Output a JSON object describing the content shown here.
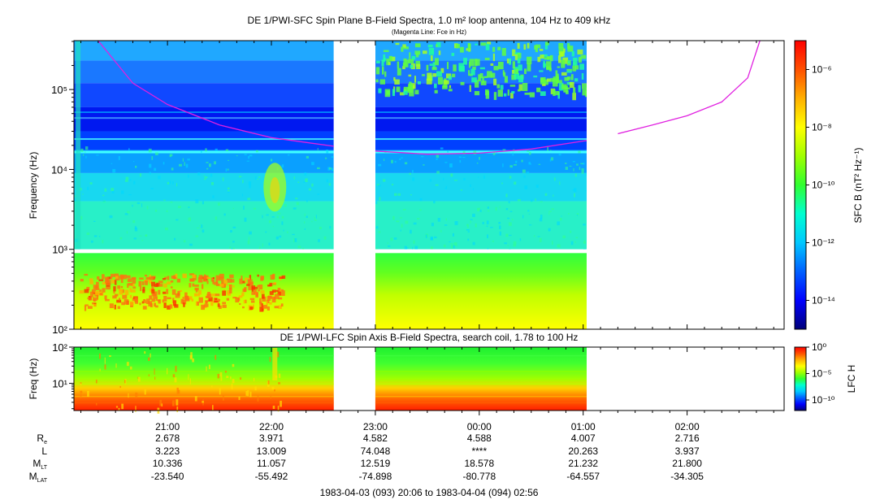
{
  "colors": {
    "fce_line": "#e020e0",
    "colormap": [
      "#00007a",
      "#0000ff",
      "#0060ff",
      "#00c8ff",
      "#00ffd0",
      "#30ff30",
      "#a0ff00",
      "#ffff00",
      "#ffb000",
      "#ff5000",
      "#ff0000"
    ]
  },
  "chart_data": [
    {
      "type": "heatmap",
      "title": "DE 1/PWI-SFC  Spin Plane B-Field Spectra, 1.0 m² loop antenna, 104 Hz to 409 kHz",
      "subtitle": "(Magenta Line: Fce in Hz)",
      "ylabel": "Frequency (Hz)",
      "yscale": "log",
      "ylim": [
        100,
        409000
      ],
      "yticks": [
        {
          "v": 100,
          "label": "10²"
        },
        {
          "v": 1000,
          "label": "10³"
        },
        {
          "v": 10000,
          "label": "10⁴"
        },
        {
          "v": 100000,
          "label": "10⁵"
        }
      ],
      "x_range": [
        "20:06",
        "02:56"
      ],
      "data_gaps": [
        [
          "22:36",
          "23:00"
        ],
        [
          "01:02",
          "02:56"
        ]
      ],
      "colorbar": {
        "label": "SFC B (nT² Hz⁻¹)",
        "scale": "log",
        "range": [
          1e-15,
          1e-05
        ],
        "ticks": [
          {
            "v": 1e-06,
            "label": "10⁻⁶"
          },
          {
            "v": 1e-08,
            "label": "10⁻⁸"
          },
          {
            "v": 1e-10,
            "label": "10⁻¹⁰"
          },
          {
            "v": 1e-12,
            "label": "10⁻¹²"
          },
          {
            "v": 1e-14,
            "label": "10⁻¹⁴"
          }
        ]
      },
      "fce_line": {
        "name": "Fce",
        "segments": [
          [
            [
              "20:20",
              409000
            ],
            [
              "20:40",
              120000
            ],
            [
              "21:00",
              65000
            ],
            [
              "21:30",
              36000
            ],
            [
              "22:00",
              25000
            ],
            [
              "22:36",
              19500
            ]
          ],
          [
            [
              "23:00",
              17000
            ],
            [
              "23:30",
              15500
            ],
            [
              "00:00",
              16000
            ],
            [
              "00:30",
              18000
            ],
            [
              "01:02",
              23000
            ]
          ],
          [
            [
              "01:20",
              28000
            ],
            [
              "01:40",
              36000
            ],
            [
              "02:00",
              47000
            ],
            [
              "02:20",
              70000
            ],
            [
              "02:35",
              140000
            ],
            [
              "02:42",
              409000
            ]
          ]
        ]
      }
    },
    {
      "type": "heatmap",
      "title": "DE 1/PWI-LFC  Spin Axis B-Field Spectra, search coil, 1.78 to 100 Hz",
      "ylabel": "Freq (Hz)",
      "yscale": "log",
      "ylim": [
        1.78,
        100
      ],
      "yticks": [
        {
          "v": 10,
          "label": "10¹"
        },
        {
          "v": 100,
          "label": "10²"
        }
      ],
      "x_range": [
        "20:06",
        "02:56"
      ],
      "data_gaps": [
        [
          "22:36",
          "23:00"
        ],
        [
          "01:02",
          "02:56"
        ]
      ],
      "colorbar": {
        "label": "LFC H",
        "scale": "log",
        "range": [
          1e-12,
          1
        ],
        "ticks": [
          {
            "v": 1,
            "label": "10⁰"
          },
          {
            "v": 1e-05,
            "label": "10⁻⁵"
          },
          {
            "v": 1e-10,
            "label": "10⁻¹⁰"
          }
        ]
      }
    }
  ],
  "time_axis": {
    "ticks": [
      "21:00",
      "22:00",
      "23:00",
      "00:00",
      "01:00",
      "02:00"
    ],
    "rows": [
      {
        "label": "R",
        "sub": "e",
        "values": [
          "2.678",
          "3.971",
          "4.582",
          "4.588",
          "4.007",
          "2.716"
        ]
      },
      {
        "label": "L",
        "sub": "",
        "values": [
          "3.223",
          "13.009",
          "74.048",
          "****",
          "20.263",
          "3.937"
        ]
      },
      {
        "label": "M",
        "sub": "LT",
        "values": [
          "10.336",
          "11.057",
          "12.519",
          "18.578",
          "21.232",
          "21.800"
        ]
      },
      {
        "label": "M",
        "sub": "LAT",
        "values": [
          "-23.540",
          "-55.492",
          "-74.898",
          "-80.778",
          "-64.557",
          "-34.305"
        ]
      }
    ],
    "time_span": "1983-04-03 (093) 20:06 to 1983-04-04 (094) 02:56"
  }
}
